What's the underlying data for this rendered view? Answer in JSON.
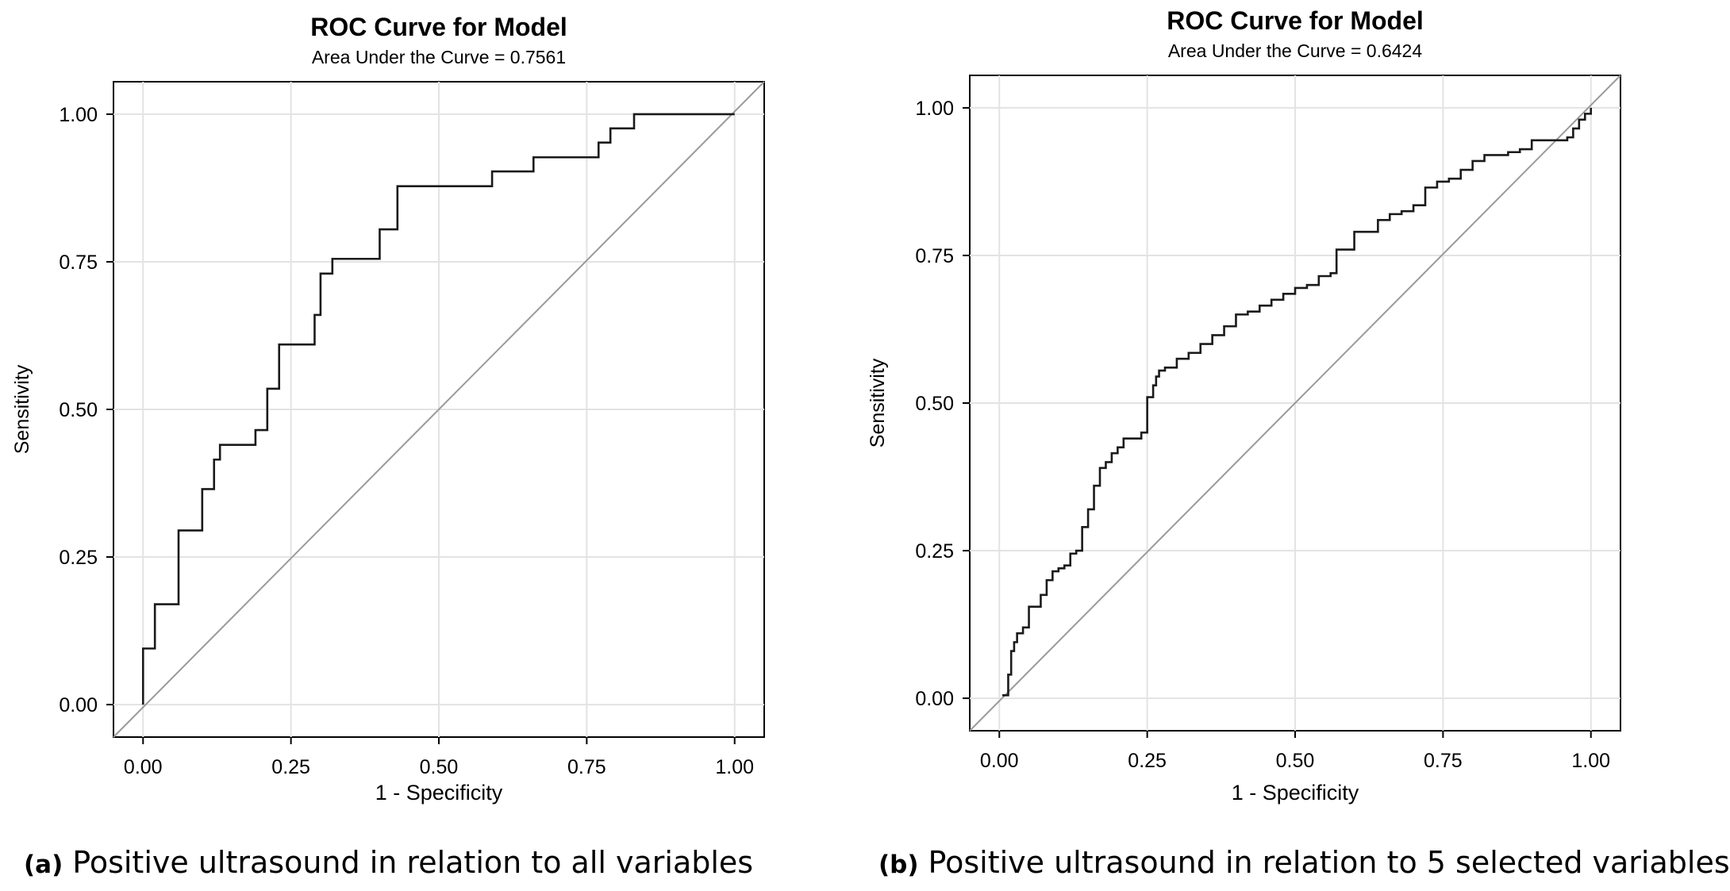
{
  "figures": [
    {
      "caption_tag": "(a)",
      "caption_text": "Positive ultrasound in relation to all variables"
    },
    {
      "caption_tag": "(b)",
      "caption_text": "Positive ultrasound in relation to 5 selected variables"
    }
  ],
  "chart_data": [
    {
      "type": "line",
      "title": "ROC Curve for Model",
      "subtitle": "Area Under the Curve = 0.7561",
      "xlabel": "1 - Specificity",
      "ylabel": "Sensitivity",
      "xlim": [
        -0.05,
        1.05
      ],
      "ylim": [
        -0.055,
        1.055
      ],
      "xticks": [
        0,
        0.25,
        0.5,
        0.75,
        1
      ],
      "xtick_labels": [
        "0.00",
        "0.25",
        "0.50",
        "0.75",
        "1.00"
      ],
      "yticks": [
        0,
        0.25,
        0.5,
        0.75,
        1
      ],
      "ytick_labels": [
        "0.00",
        "0.25",
        "0.50",
        "0.75",
        "1.00"
      ],
      "grid": true,
      "colors": {
        "curve": "#1a1a1a",
        "reference": "#9a9a9a",
        "grid": "#e3e3e3"
      },
      "series": [
        {
          "role": "roc",
          "step": true,
          "x": [
            0,
            0,
            0.02,
            0.02,
            0.06,
            0.06,
            0.1,
            0.1,
            0.12,
            0.12,
            0.13,
            0.13,
            0.19,
            0.19,
            0.21,
            0.21,
            0.23,
            0.23,
            0.29,
            0.29,
            0.3,
            0.3,
            0.32,
            0.32,
            0.4,
            0.4,
            0.43,
            0.43,
            0.59,
            0.59,
            0.66,
            0.66,
            0.77,
            0.77,
            0.79,
            0.79,
            0.83,
            0.83,
            1.0
          ],
          "y": [
            0,
            0.095,
            0.095,
            0.17,
            0.17,
            0.295,
            0.295,
            0.365,
            0.365,
            0.415,
            0.415,
            0.44,
            0.44,
            0.465,
            0.465,
            0.535,
            0.535,
            0.61,
            0.61,
            0.66,
            0.66,
            0.73,
            0.73,
            0.755,
            0.755,
            0.805,
            0.805,
            0.878,
            0.878,
            0.903,
            0.903,
            0.927,
            0.927,
            0.952,
            0.952,
            0.976,
            0.976,
            1.0,
            1.0
          ]
        },
        {
          "role": "reference",
          "x": [
            0,
            1
          ],
          "y": [
            0,
            1
          ]
        }
      ]
    },
    {
      "type": "line",
      "title": "ROC Curve for Model",
      "subtitle": "Area Under the Curve = 0.6424",
      "xlabel": "1 - Specificity",
      "ylabel": "Sensitivity",
      "xlim": [
        -0.05,
        1.05
      ],
      "ylim": [
        -0.055,
        1.055
      ],
      "xticks": [
        0,
        0.25,
        0.5,
        0.75,
        1
      ],
      "xtick_labels": [
        "0.00",
        "0.25",
        "0.50",
        "0.75",
        "1.00"
      ],
      "yticks": [
        0,
        0.25,
        0.5,
        0.75,
        1
      ],
      "ytick_labels": [
        "0.00",
        "0.25",
        "0.50",
        "0.75",
        "1.00"
      ],
      "grid": true,
      "colors": {
        "curve": "#1a1a1a",
        "reference": "#9a9a9a",
        "grid": "#e3e3e3"
      },
      "series": [
        {
          "role": "roc",
          "step": true,
          "x": [
            0.005,
            0.015,
            0.02,
            0.025,
            0.03,
            0.04,
            0.05,
            0.06,
            0.07,
            0.08,
            0.09,
            0.1,
            0.11,
            0.12,
            0.13,
            0.14,
            0.15,
            0.16,
            0.17,
            0.18,
            0.19,
            0.2,
            0.21,
            0.22,
            0.23,
            0.24,
            0.25,
            0.26,
            0.265,
            0.27,
            0.28,
            0.3,
            0.32,
            0.34,
            0.36,
            0.38,
            0.4,
            0.42,
            0.44,
            0.46,
            0.48,
            0.5,
            0.52,
            0.54,
            0.56,
            0.57,
            0.6,
            0.62,
            0.64,
            0.66,
            0.68,
            0.7,
            0.72,
            0.74,
            0.76,
            0.78,
            0.8,
            0.82,
            0.84,
            0.86,
            0.88,
            0.9,
            0.92,
            0.94,
            0.96,
            0.97,
            0.98,
            0.99,
            1.0
          ],
          "y": [
            0.005,
            0.04,
            0.08,
            0.095,
            0.11,
            0.12,
            0.155,
            0.155,
            0.175,
            0.2,
            0.215,
            0.22,
            0.225,
            0.245,
            0.25,
            0.29,
            0.32,
            0.36,
            0.39,
            0.4,
            0.415,
            0.425,
            0.44,
            0.44,
            0.44,
            0.45,
            0.51,
            0.53,
            0.545,
            0.555,
            0.56,
            0.575,
            0.585,
            0.6,
            0.615,
            0.63,
            0.65,
            0.655,
            0.665,
            0.675,
            0.685,
            0.695,
            0.7,
            0.715,
            0.72,
            0.76,
            0.79,
            0.79,
            0.81,
            0.82,
            0.825,
            0.835,
            0.865,
            0.875,
            0.88,
            0.895,
            0.91,
            0.92,
            0.92,
            0.925,
            0.93,
            0.945,
            0.945,
            0.945,
            0.95,
            0.965,
            0.98,
            0.99,
            1.0
          ]
        },
        {
          "role": "reference",
          "x": [
            0,
            1
          ],
          "y": [
            0,
            1
          ]
        }
      ]
    }
  ]
}
